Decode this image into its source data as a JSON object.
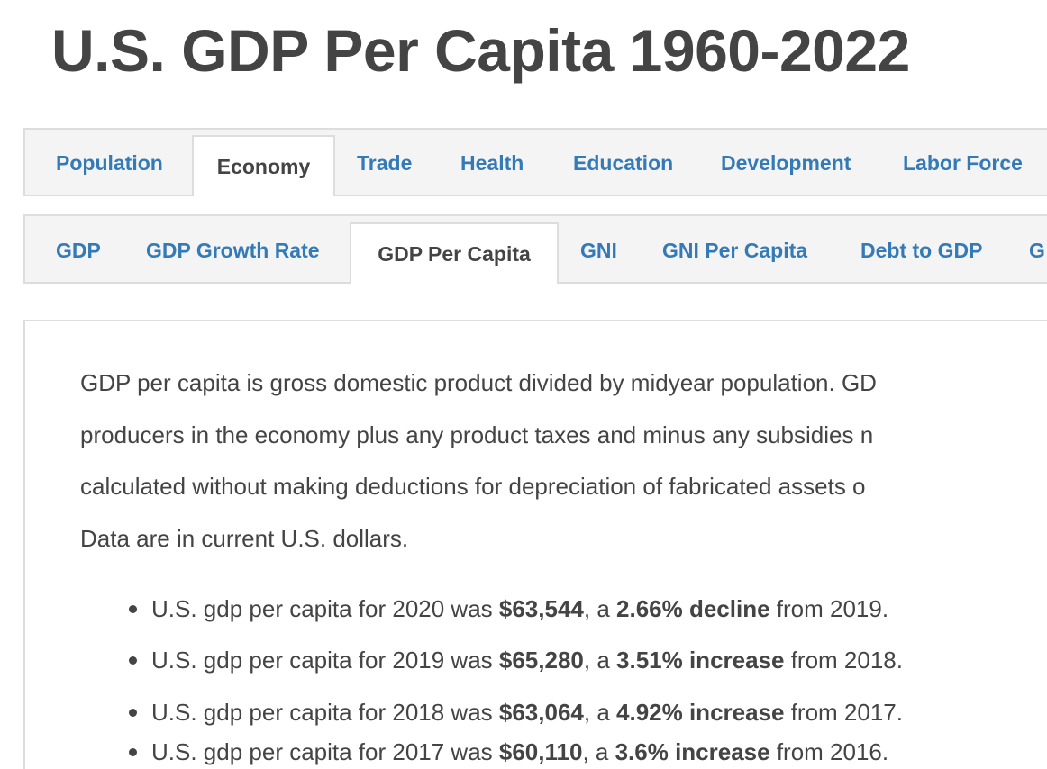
{
  "title": "U.S. GDP Per Capita 1960-2022",
  "main_tabs": [
    {
      "label": "Population"
    },
    {
      "label": "Economy",
      "active": true
    },
    {
      "label": "Trade"
    },
    {
      "label": "Health"
    },
    {
      "label": "Education"
    },
    {
      "label": "Development"
    },
    {
      "label": "Labor Force"
    }
  ],
  "sub_tabs": [
    {
      "label": "GDP"
    },
    {
      "label": "GDP Growth Rate"
    },
    {
      "label": "GDP Per Capita",
      "active": true
    },
    {
      "label": "GNI"
    },
    {
      "label": "GNI Per Capita"
    },
    {
      "label": "Debt to GDP"
    },
    {
      "label": "G"
    }
  ],
  "description_lines": [
    "GDP per capita is gross domestic product divided by midyear population. GD",
    "producers in the economy plus any product taxes and minus any subsidies n",
    "calculated without making deductions for depreciation of fabricated assets o",
    "Data are in current U.S. dollars."
  ],
  "stats": [
    {
      "prefix": "U.S. gdp per capita for 2020 was ",
      "value": "$63,544",
      "mid": ", a ",
      "change": "2.66% decline",
      "suffix": " from 2019."
    },
    {
      "prefix": "U.S. gdp per capita for 2019 was ",
      "value": "$65,280",
      "mid": ", a ",
      "change": "3.51% increase",
      "suffix": " from 2018."
    },
    {
      "prefix": "U.S. gdp per capita for 2018 was ",
      "value": "$63,064",
      "mid": ", a ",
      "change": "4.92% increase",
      "suffix": " from 2017."
    },
    {
      "prefix": "U.S. gdp per capita for 2017 was ",
      "value": "$60,110",
      "mid": ", a ",
      "change": "3.6% increase",
      "suffix": " from 2016."
    }
  ],
  "colors": {
    "link": "#337ab7",
    "text": "#444444",
    "tab_bg": "#f4f4f4",
    "border": "#dddddd"
  }
}
